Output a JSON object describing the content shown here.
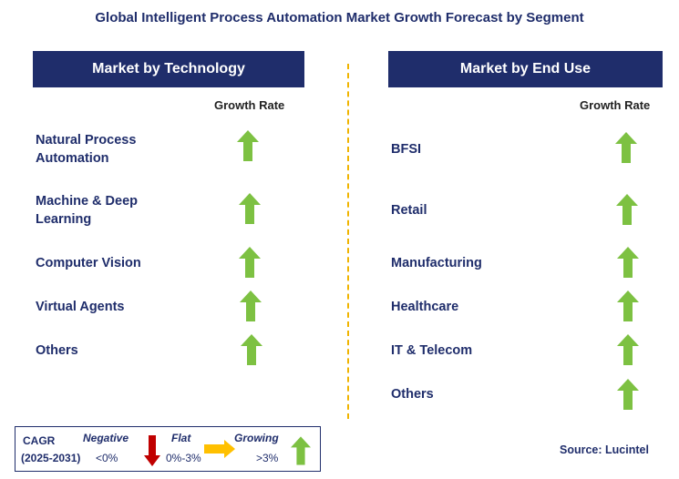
{
  "title": "Global Intelligent Process Automation Market Growth Forecast by Segment",
  "left_panel": {
    "header": "Market by Technology",
    "growth_rate_label": "Growth Rate",
    "items": [
      {
        "label": "Natural Process Automation",
        "trend": "growing"
      },
      {
        "label": "Machine & Deep Learning",
        "trend": "growing"
      },
      {
        "label": "Computer Vision",
        "trend": "growing"
      },
      {
        "label": "Virtual Agents",
        "trend": "growing"
      },
      {
        "label": "Others",
        "trend": "growing"
      }
    ]
  },
  "right_panel": {
    "header": "Market by End Use",
    "growth_rate_label": "Growth Rate",
    "items": [
      {
        "label": "BFSI",
        "trend": "growing"
      },
      {
        "label": "Retail",
        "trend": "growing"
      },
      {
        "label": "Manufacturing",
        "trend": "growing"
      },
      {
        "label": "Healthcare",
        "trend": "growing"
      },
      {
        "label": "IT & Telecom",
        "trend": "growing"
      },
      {
        "label": "Others",
        "trend": "growing"
      }
    ]
  },
  "legend": {
    "cagr_label": "CAGR",
    "period": "(2025-2031)",
    "negative_label": "Negative",
    "negative_range": "<0%",
    "flat_label": "Flat",
    "flat_range": "0%-3%",
    "growing_label": "Growing",
    "growing_range": ">3%"
  },
  "source": "Source: Lucintel",
  "colors": {
    "header_bg": "#1f2d6b",
    "text": "#1f2d6b",
    "growing_arrow": "#7dc142",
    "negative_arrow": "#c00000",
    "flat_arrow": "#ffc000",
    "divider": "#f0b400"
  }
}
